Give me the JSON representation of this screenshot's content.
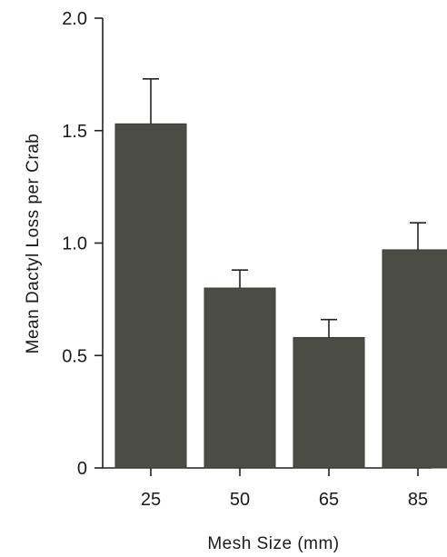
{
  "chart_data": {
    "type": "bar",
    "title": "",
    "xlabel": "Mesh Size (mm)",
    "ylabel": "Mean Dactyl Loss per Crab",
    "categories": [
      "25",
      "50",
      "65",
      "85"
    ],
    "values": [
      1.53,
      0.8,
      0.58,
      0.97
    ],
    "error_upper": [
      1.73,
      0.88,
      0.66,
      1.09
    ],
    "ylim": [
      0,
      2.0
    ],
    "yticks": [
      {
        "value": 0,
        "label": "0"
      },
      {
        "value": 0.5,
        "label": "0.5"
      },
      {
        "value": 1.0,
        "label": "1.0"
      },
      {
        "value": 1.5,
        "label": "1.5"
      },
      {
        "value": 2.0,
        "label": "2.0"
      }
    ],
    "grid": false,
    "legend": "none",
    "bar_color": "#4b4c43"
  }
}
